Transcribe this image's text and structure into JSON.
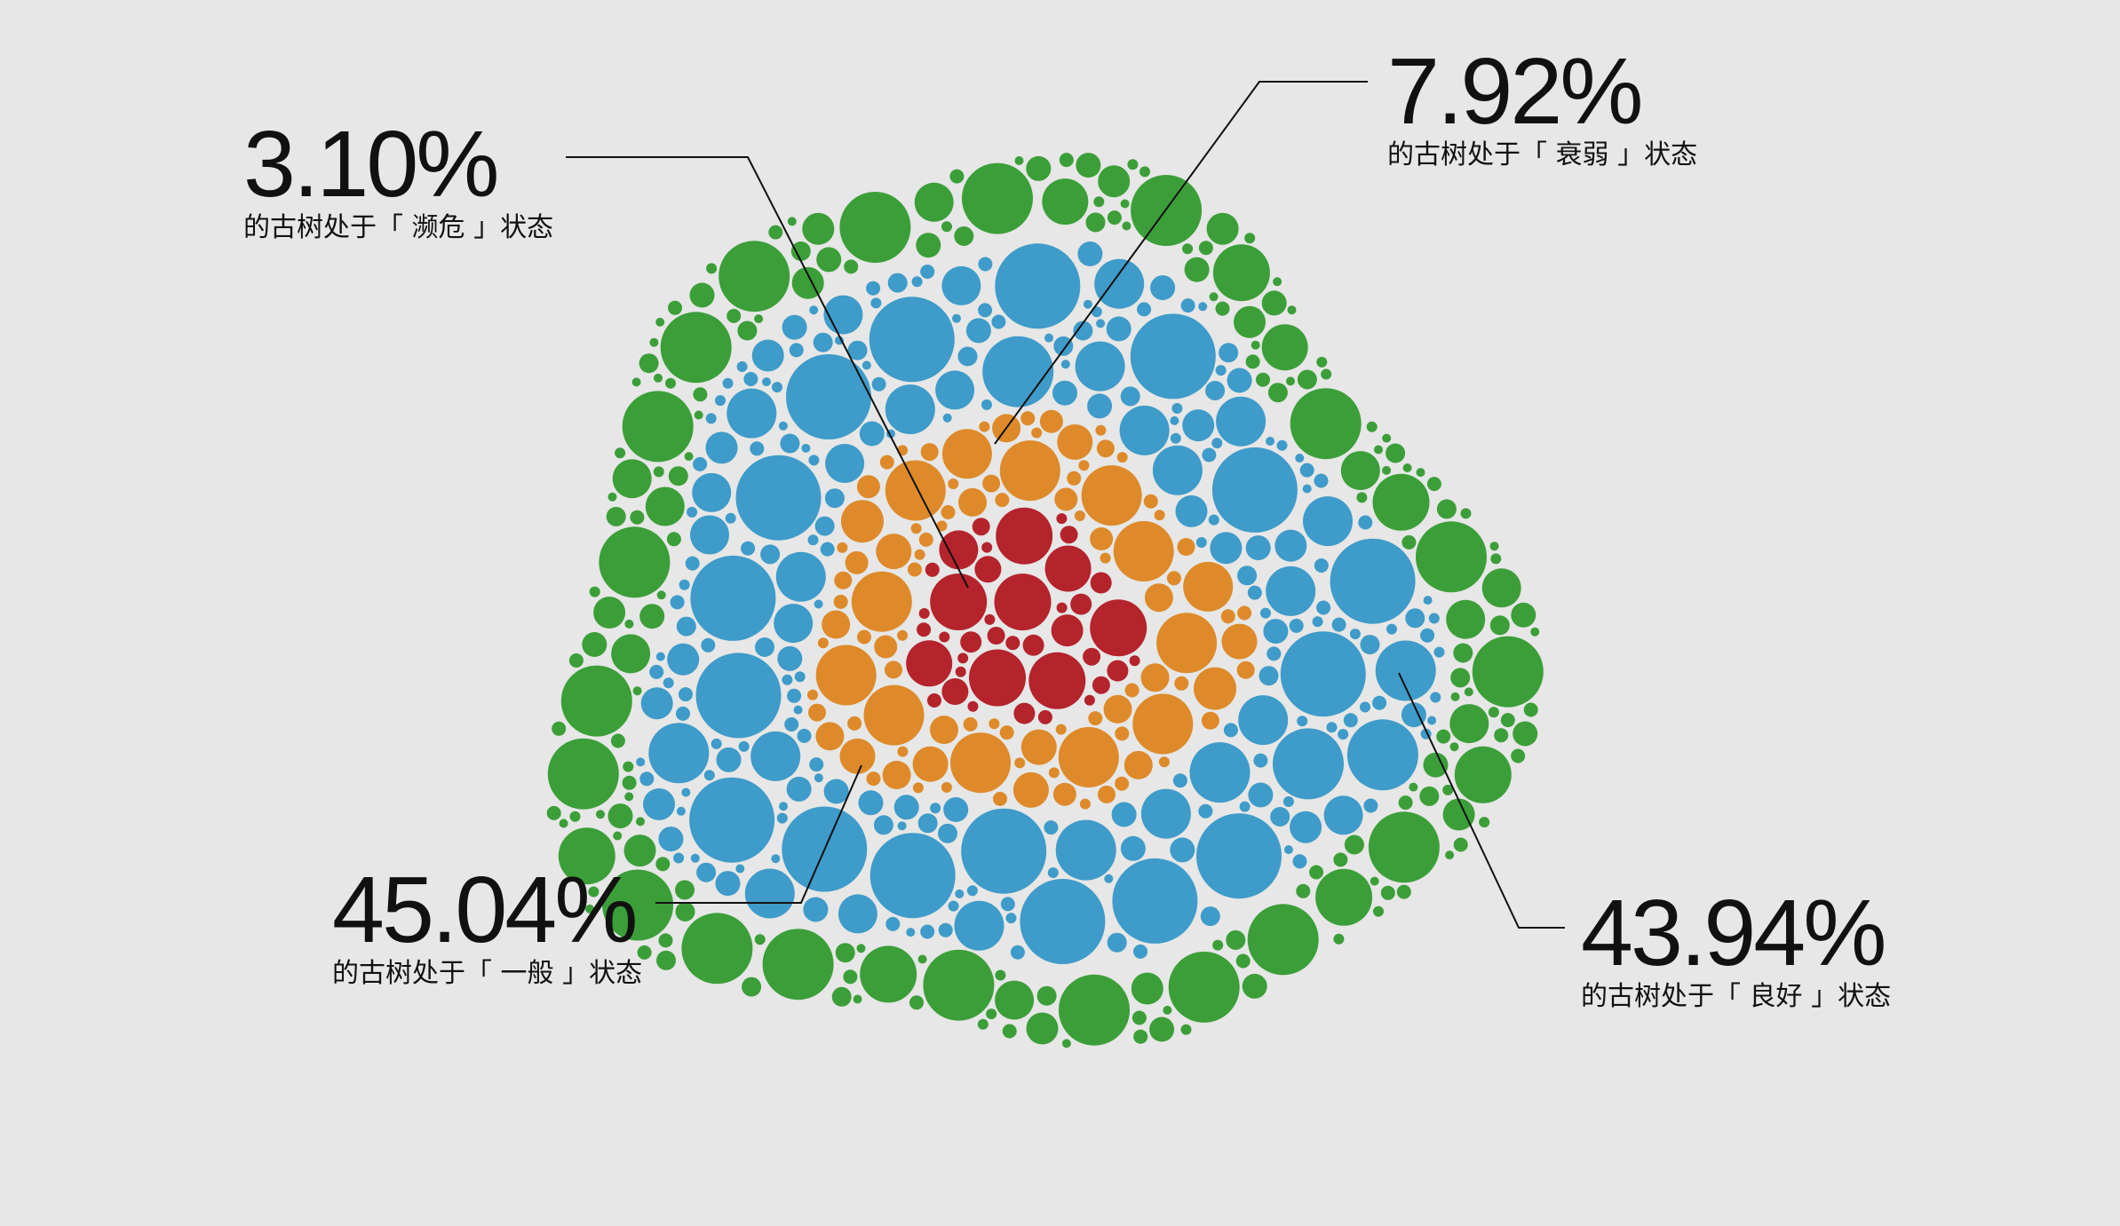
{
  "chart_data": {
    "type": "bubble-cluster",
    "categories": [
      {
        "key": "endangered",
        "percent": "3.10%",
        "label": "的古树处于「 濒危 」状态",
        "color": "#b5232d"
      },
      {
        "key": "weak",
        "percent": "7.92%",
        "label": "的古树处于「 衰弱 」状态",
        "color": "#de8a2a"
      },
      {
        "key": "normal",
        "percent": "45.04%",
        "label": "的古树处于「 一般 」状态",
        "color": "#3f9bc9"
      },
      {
        "key": "good",
        "percent": "43.94%",
        "label": "的古树处于「 良好 」状态",
        "color": "#3c9e39"
      }
    ],
    "values": [
      3.1,
      7.92,
      45.04,
      43.94
    ]
  }
}
